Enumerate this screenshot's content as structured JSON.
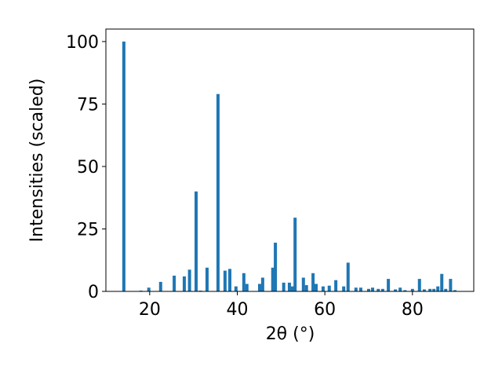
{
  "chart_data": {
    "type": "bar",
    "xlabel": "2θ (°)",
    "ylabel": "Intensities (scaled)",
    "x": [
      14.1,
      18.0,
      19.8,
      22.5,
      25.6,
      27.9,
      29.1,
      30.6,
      31.6,
      33.1,
      35.6,
      37.2,
      38.3,
      39.7,
      41.5,
      42.2,
      45.1,
      45.8,
      48.1,
      48.7,
      50.6,
      51.9,
      52.6,
      53.2,
      55.1,
      55.8,
      57.3,
      58.0,
      59.6,
      61.0,
      62.5,
      64.3,
      65.3,
      67.1,
      68.2,
      70.0,
      70.9,
      72.2,
      73.2,
      74.5,
      76.1,
      77.2,
      78.3,
      80.0,
      81.6,
      82.7,
      84.0,
      84.9,
      85.8,
      86.7,
      87.6,
      88.7,
      89.7
    ],
    "values": [
      100,
      0.3,
      1.5,
      3.8,
      6.3,
      6,
      8.7,
      40,
      0.3,
      9.5,
      79,
      8.3,
      9,
      2,
      7.3,
      3,
      3,
      5.5,
      9.5,
      19.5,
      3.5,
      3.5,
      2,
      29.5,
      5.5,
      2.5,
      7.3,
      3,
      2,
      2.3,
      4.5,
      2,
      11.5,
      1.5,
      1.5,
      1,
      1.5,
      1,
      1,
      5,
      0.8,
      1.5,
      0.5,
      1,
      5,
      0.8,
      1,
      1,
      2,
      7,
      1,
      5,
      0.5
    ],
    "color": "#1f77b4",
    "xlim": [
      10,
      94
    ],
    "xticks": [
      20,
      40,
      60,
      80
    ],
    "ylim": [
      0,
      105
    ],
    "yticks": [
      0,
      25,
      50,
      75,
      100
    ]
  }
}
